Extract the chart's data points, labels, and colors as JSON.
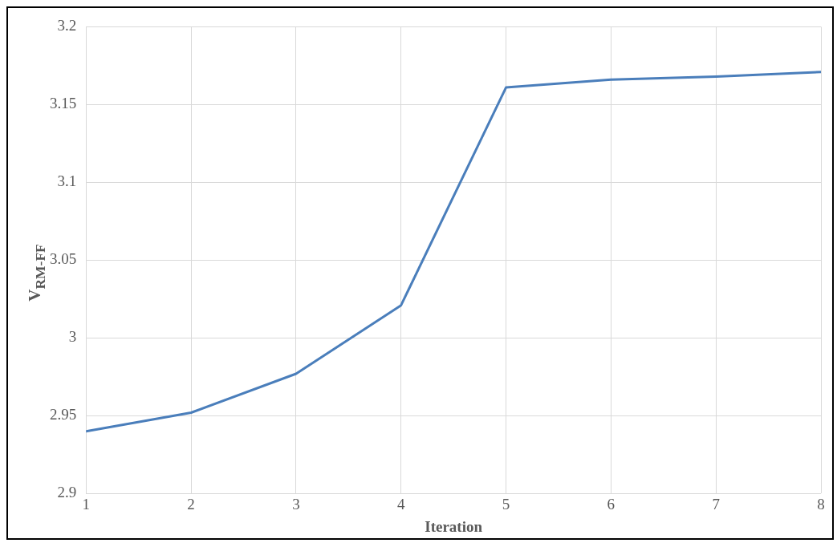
{
  "chart_data": {
    "type": "line",
    "xlabel": "Iteration",
    "ylabel": "V$_{RM-FF}$",
    "x": [
      1,
      2,
      3,
      4,
      5,
      6,
      7,
      8
    ],
    "series": [
      {
        "color": "#4a7ebb",
        "values": [
          2.94,
          2.952,
          2.977,
          3.021,
          3.161,
          3.166,
          3.168,
          3.171
        ]
      }
    ],
    "xlim": [
      1,
      8
    ],
    "xticks": [
      1,
      2,
      3,
      4,
      5,
      6,
      7,
      8
    ],
    "ylim": [
      2.9,
      3.2
    ],
    "yticks": [
      2.9,
      2.95,
      3,
      3.05,
      3.1,
      3.15,
      3.2
    ],
    "grid": true,
    "legend": false,
    "marker": "none",
    "line_style": "solid"
  }
}
